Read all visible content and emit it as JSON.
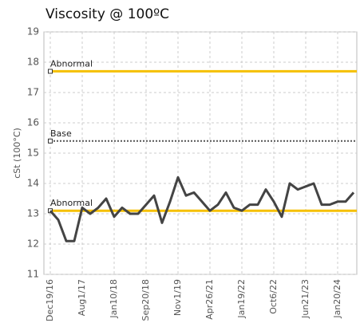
{
  "chart_data": {
    "type": "line",
    "title": "Viscosity @ 100ºC",
    "y_label": "cSt (100°C)",
    "categories": [
      "Dec19/16",
      null,
      null,
      null,
      "Aug1/17",
      null,
      null,
      null,
      "Jan10/18",
      null,
      null,
      null,
      "Sep20/18",
      null,
      null,
      null,
      "Nov1/19",
      null,
      null,
      null,
      "Apr26/21",
      null,
      null,
      null,
      "Jan19/22",
      null,
      null,
      null,
      "Oct6/22",
      null,
      null,
      null,
      "Jun21/23",
      null,
      null,
      null,
      "Jan20/24",
      null,
      null
    ],
    "values": [
      13.1,
      12.8,
      12.1,
      12.1,
      13.2,
      13.0,
      13.2,
      13.5,
      12.9,
      13.2,
      13.0,
      13.0,
      13.3,
      13.6,
      12.7,
      13.4,
      14.2,
      13.6,
      13.7,
      13.4,
      13.1,
      13.3,
      13.7,
      13.2,
      13.1,
      13.3,
      13.3,
      13.8,
      13.4,
      12.9,
      14.0,
      13.8,
      13.9,
      14.0,
      13.3,
      13.3,
      13.4,
      13.4,
      13.7
    ],
    "color": "#444444",
    "ylim": [
      11,
      19
    ],
    "yticks": [
      11,
      12,
      13,
      14,
      15,
      16,
      17,
      18,
      19
    ],
    "grid": true,
    "reference_lines": [
      {
        "label": "Abnormal",
        "value": 17.7,
        "color": "#f5c000",
        "style": "solid"
      },
      {
        "label": "Base",
        "value": 15.4,
        "color": "#555555",
        "style": "dotted"
      },
      {
        "label": "Abnormal",
        "value": 13.1,
        "color": "#f5c000",
        "style": "solid"
      }
    ]
  }
}
